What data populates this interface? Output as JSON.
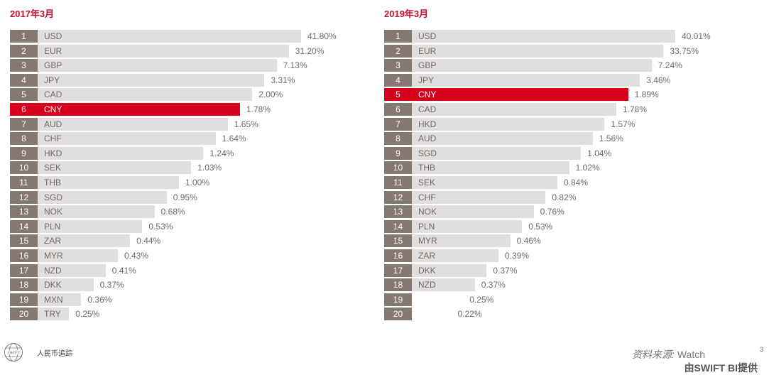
{
  "chart_data": [
    {
      "type": "bar",
      "title": "2017年3月",
      "highlight": "CNY",
      "highlight_color": "#d6001c",
      "ranks": [
        1,
        2,
        3,
        4,
        5,
        6,
        7,
        8,
        9,
        10,
        11,
        12,
        13,
        14,
        15,
        16,
        17,
        18,
        19,
        20
      ],
      "categories": [
        "USD",
        "EUR",
        "GBP",
        "JPY",
        "CAD",
        "CNY",
        "AUD",
        "CHF",
        "HKD",
        "SEK",
        "THB",
        "SGD",
        "NOK",
        "PLN",
        "ZAR",
        "MYR",
        "NZD",
        "DKK",
        "MXN",
        "TRY"
      ],
      "labels": [
        "41.80%",
        "31.20%",
        "7.13%",
        "3.31%",
        "2.00%",
        "1.78%",
        "1.65%",
        "1.64%",
        "1.24%",
        "1.03%",
        "1.00%",
        "0.95%",
        "0.68%",
        "0.53%",
        "0.44%",
        "0.43%",
        "0.41%",
        "0.37%",
        "0.36%",
        "0.25%"
      ],
      "values": [
        41.8,
        31.2,
        7.13,
        3.31,
        2.0,
        1.78,
        1.65,
        1.64,
        1.24,
        1.03,
        1.0,
        0.95,
        0.68,
        0.53,
        0.44,
        0.43,
        0.41,
        0.37,
        0.36,
        0.25
      ]
    },
    {
      "type": "bar",
      "title": "2019年3月",
      "highlight": "CNY",
      "highlight_color": "#d6001c",
      "ranks": [
        1,
        2,
        3,
        4,
        5,
        6,
        7,
        8,
        9,
        10,
        11,
        12,
        13,
        14,
        15,
        16,
        17,
        18,
        19,
        20
      ],
      "categories": [
        "USD",
        "EUR",
        "GBP",
        "JPY",
        "CNY",
        "CAD",
        "HKD",
        "AUD",
        "SGD",
        "THB",
        "SEK",
        "CHF",
        "NOK",
        "PLN",
        "MYR",
        "ZAR",
        "DKK",
        "NZD",
        "",
        ""
      ],
      "labels": [
        "40.01%",
        "33.75%",
        "7.24%",
        "3.46%",
        "1.89%",
        "1.78%",
        "1.57%",
        "1.56%",
        "1.04%",
        "1.02%",
        "0.84%",
        "0.82%",
        "0.76%",
        "0.53%",
        "0.46%",
        "0.39%",
        "0.37%",
        "0.37%",
        "0.25%",
        "0.22%"
      ],
      "values": [
        40.01,
        33.75,
        7.24,
        3.46,
        1.89,
        1.78,
        1.57,
        1.56,
        1.04,
        1.02,
        0.84,
        0.82,
        0.76,
        0.53,
        0.46,
        0.39,
        0.37,
        0.37,
        0.25,
        0.22
      ]
    }
  ],
  "footer": {
    "logo_text": "SWIFT",
    "product": "人民币追踪",
    "source_label": "资料来源:",
    "source_value": "Watch",
    "provided_by": "由SWIFT BI提供",
    "page_number": "3"
  }
}
